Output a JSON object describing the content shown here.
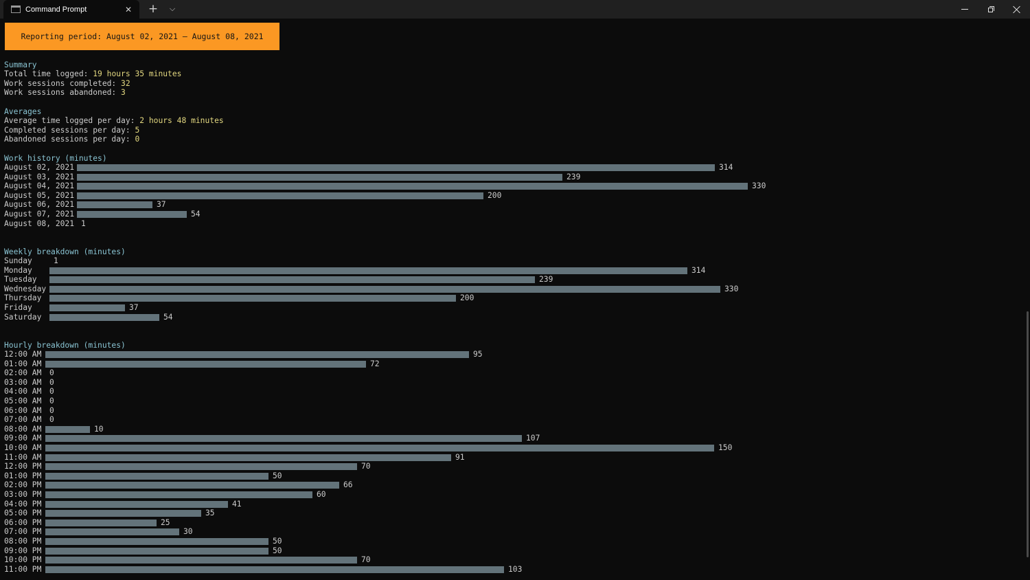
{
  "window": {
    "tab_title": "Command Prompt",
    "tab_icon": "console-icon",
    "close_tab_glyph": "✕",
    "new_tab_glyph": "+",
    "dropdown_glyph": "⌵"
  },
  "report": {
    "banner": "Reporting period: August 02, 2021 – August 08, 2021",
    "banner_color": "#fb9823",
    "summary": {
      "heading": "Summary",
      "total_label": "Total time logged: ",
      "total_value": "19 hours 35 minutes",
      "completed_label": "Work sessions completed: ",
      "completed_value": "32",
      "abandoned_label": "Work sessions abandoned: ",
      "abandoned_value": "3"
    },
    "averages": {
      "heading": "Averages",
      "avg_time_label": "Average time logged per day: ",
      "avg_time_value": "2 hours 48 minutes",
      "completed_label": "Completed sessions per day: ",
      "completed_value": "5",
      "abandoned_label": "Abandoned sessions per day: ",
      "abandoned_value": "0"
    },
    "work_history": {
      "heading": "Work history (minutes)",
      "rows": [
        {
          "label": "August 02, 2021",
          "value": 314
        },
        {
          "label": "August 03, 2021",
          "value": 239
        },
        {
          "label": "August 04, 2021",
          "value": 330
        },
        {
          "label": "August 05, 2021",
          "value": 200
        },
        {
          "label": "August 06, 2021",
          "value": 37
        },
        {
          "label": "August 07, 2021",
          "value": 54
        },
        {
          "label": "August 08, 2021",
          "value": 1
        }
      ]
    },
    "weekly": {
      "heading": "Weekly breakdown (minutes)",
      "rows": [
        {
          "label": "Sunday",
          "value": 1
        },
        {
          "label": "Monday",
          "value": 314
        },
        {
          "label": "Tuesday",
          "value": 239
        },
        {
          "label": "Wednesday",
          "value": 330
        },
        {
          "label": "Thursday",
          "value": 200
        },
        {
          "label": "Friday",
          "value": 37
        },
        {
          "label": "Saturday",
          "value": 54
        }
      ]
    },
    "hourly": {
      "heading": "Hourly breakdown (minutes)",
      "rows": [
        {
          "label": "12:00 AM",
          "value": 95
        },
        {
          "label": "01:00 AM",
          "value": 72
        },
        {
          "label": "02:00 AM",
          "value": 0
        },
        {
          "label": "03:00 AM",
          "value": 0
        },
        {
          "label": "04:00 AM",
          "value": 0
        },
        {
          "label": "05:00 AM",
          "value": 0
        },
        {
          "label": "06:00 AM",
          "value": 0
        },
        {
          "label": "07:00 AM",
          "value": 0
        },
        {
          "label": "08:00 AM",
          "value": 10
        },
        {
          "label": "09:00 AM",
          "value": 107
        },
        {
          "label": "10:00 AM",
          "value": 150
        },
        {
          "label": "11:00 AM",
          "value": 91
        },
        {
          "label": "12:00 PM",
          "value": 70
        },
        {
          "label": "01:00 PM",
          "value": 50
        },
        {
          "label": "02:00 PM",
          "value": 66
        },
        {
          "label": "03:00 PM",
          "value": 60
        },
        {
          "label": "04:00 PM",
          "value": 41
        },
        {
          "label": "05:00 PM",
          "value": 35
        },
        {
          "label": "06:00 PM",
          "value": 25
        },
        {
          "label": "07:00 PM",
          "value": 30
        },
        {
          "label": "08:00 PM",
          "value": 50
        },
        {
          "label": "09:00 PM",
          "value": 50
        },
        {
          "label": "10:00 PM",
          "value": 70
        },
        {
          "label": "11:00 PM",
          "value": 103
        }
      ]
    }
  },
  "colors": {
    "heading": "#8ac4d3",
    "value": "#e3d880",
    "bar": "#63737a",
    "background": "#0c0c0c"
  }
}
